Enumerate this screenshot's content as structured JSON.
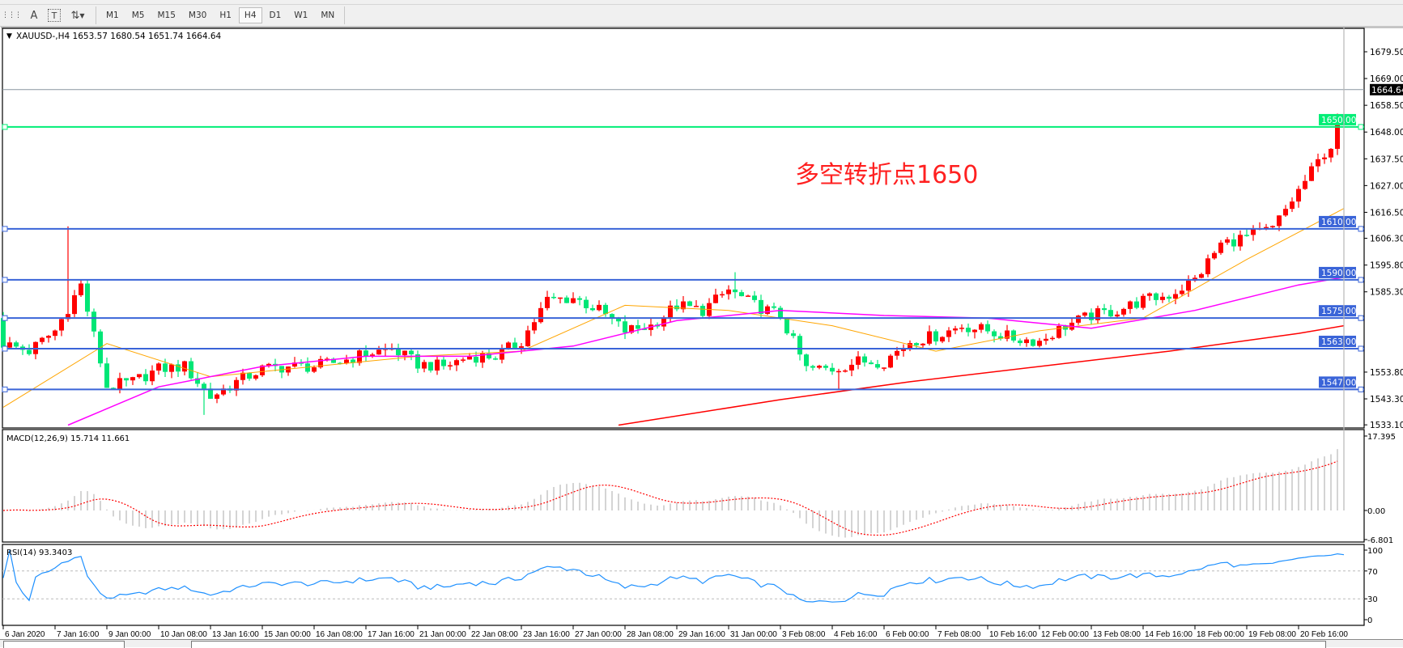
{
  "toolbar": {
    "icons": [
      "period-separator-icon",
      "text-label-icon",
      "text-box-icon",
      "arrows-icon"
    ],
    "timeframes": [
      "M1",
      "M5",
      "M15",
      "M30",
      "H1",
      "H4",
      "D1",
      "W1",
      "MN"
    ],
    "active_timeframe": "H4"
  },
  "chart": {
    "header": "XAUUSD-,H4  1653.57 1680.54 1651.74 1664.64",
    "annotation": "多空转折点1650",
    "annotation_color": "#ff2020",
    "current_price_label": "1664.64",
    "price_ticks": [
      "1679.50",
      "1669.00",
      "1658.50",
      "1648.00",
      "1637.50",
      "1627.00",
      "1616.50",
      "1606.30",
      "1595.80",
      "1585.30",
      "1553.80",
      "1543.30",
      "1533.10"
    ],
    "levels": [
      {
        "price": 1650.0,
        "label": "1650.00",
        "color": "#00ee76"
      },
      {
        "price": 1610.0,
        "label": "1610.00",
        "color": "#3a64d8"
      },
      {
        "price": 1590.0,
        "label": "1590.00",
        "color": "#3a64d8"
      },
      {
        "price": 1575.0,
        "label": "1575.00",
        "color": "#3a64d8"
      },
      {
        "price": 1563.0,
        "label": "1563.00",
        "color": "#3a64d8"
      },
      {
        "price": 1547.0,
        "label": "1547.00",
        "color": "#3a64d8"
      }
    ],
    "time_labels": [
      "6 Jan 2020",
      "7 Jan 16:00",
      "9 Jan 00:00",
      "10 Jan 08:00",
      "13 Jan 16:00",
      "15 Jan 00:00",
      "16 Jan 08:00",
      "17 Jan 16:00",
      "21 Jan 00:00",
      "22 Jan 08:00",
      "23 Jan 16:00",
      "27 Jan 00:00",
      "28 Jan 08:00",
      "29 Jan 16:00",
      "31 Jan 00:00",
      "3 Feb 08:00",
      "4 Feb 16:00",
      "6 Feb 00:00",
      "7 Feb 08:00",
      "10 Feb 16:00",
      "12 Feb 00:00",
      "13 Feb 08:00",
      "14 Feb 16:00",
      "18 Feb 00:00",
      "19 Feb 08:00",
      "20 Feb 16:00"
    ],
    "macd": {
      "label": "MACD(12,26,9) 15.714 11.661",
      "ticks": [
        "17.395",
        "0.00",
        "-6.801"
      ]
    },
    "rsi": {
      "label": "RSI(14) 93.3403",
      "ticks": [
        "100",
        "70",
        "30",
        "0"
      ]
    },
    "colors": {
      "bull": "#ff0000",
      "bear": "#00e676",
      "ma_fast": "#ffa500",
      "ma_mid": "#ff00ff",
      "ma_slow": "#ff0000",
      "rsi": "#1e90ff",
      "macd_signal": "#ff0000",
      "macd_hist": "#b8b8b8"
    }
  },
  "chart_data": {
    "type": "candlestick",
    "symbol": "XAUUSD-",
    "timeframe": "H4",
    "ylim": [
      1533.1,
      1684
    ],
    "approx_closes_every_4_bars": [
      1565,
      1562,
      1570,
      1588,
      1548,
      1550,
      1555,
      1556,
      1544,
      1550,
      1555,
      1556,
      1556,
      1558,
      1561,
      1563,
      1557,
      1556,
      1560,
      1560,
      1566,
      1582,
      1583,
      1578,
      1570,
      1572,
      1580,
      1578,
      1586,
      1580,
      1576,
      1555,
      1555,
      1558,
      1558,
      1566,
      1568,
      1572,
      1570,
      1567,
      1566,
      1572,
      1576,
      1578,
      1582,
      1584,
      1590,
      1604,
      1607,
      1610,
      1625,
      1640
    ],
    "extremes": [
      {
        "bar": 10,
        "high": 1611
      },
      {
        "bar": 31,
        "low": 1537
      },
      {
        "bar": 113,
        "high": 1593
      },
      {
        "bar": 129,
        "low": 1547
      }
    ],
    "last_bar": {
      "open": 1653.57,
      "high": 1680.54,
      "low": 1651.74,
      "close": 1664.64
    },
    "ma_fast_every_16_bars": [
      1540,
      1565,
      1552,
      1556,
      1560,
      1562,
      1580,
      1578,
      1572,
      1562,
      1570,
      1575,
      1598,
      1618
    ],
    "ma_mid_points": [
      [
        10,
        1533
      ],
      [
        24,
        1548
      ],
      [
        40,
        1556
      ],
      [
        56,
        1560
      ],
      [
        72,
        1560
      ],
      [
        88,
        1564
      ],
      [
        104,
        1574
      ],
      [
        120,
        1578
      ],
      [
        136,
        1576
      ],
      [
        152,
        1575
      ],
      [
        168,
        1571
      ],
      [
        184,
        1578
      ],
      [
        200,
        1588
      ],
      [
        207,
        1591
      ]
    ],
    "ma_slow_points": [
      [
        95,
        1533
      ],
      [
        120,
        1543
      ],
      [
        140,
        1550
      ],
      [
        160,
        1556
      ],
      [
        180,
        1562
      ],
      [
        200,
        1569
      ],
      [
        207,
        1572
      ]
    ],
    "macd_range": [
      -6.801,
      17.395
    ],
    "rsi_levels": [
      30,
      70
    ]
  }
}
